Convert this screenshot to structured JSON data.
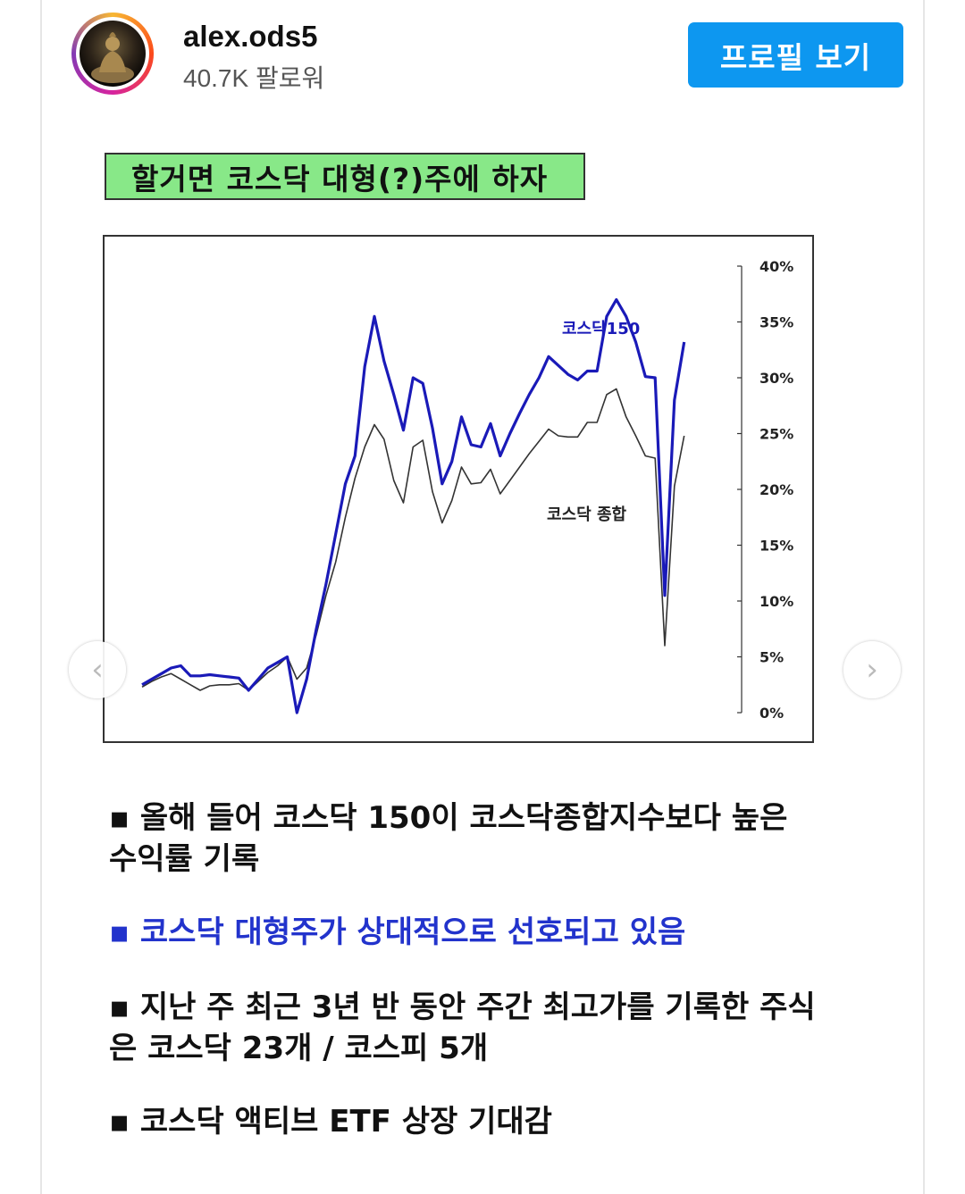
{
  "header": {
    "username": "alex.ods5",
    "followers": "40.7K 팔로워",
    "profile_button": "프로필 보기"
  },
  "post": {
    "banner_title": "할거면 코스닥 대형(?)주에 하자",
    "nav": {
      "prev_glyph": "‹",
      "next_glyph": "›"
    },
    "bullets": [
      {
        "text": "▪ 올해 들어 코스닥 150이 코스닥종합지수보다 높은 수익률 기록"
      },
      {
        "text": "▪ 코스닥 대형주가 상대적으로 선호되고 있음",
        "color": "#2233cc"
      },
      {
        "text": "▪ 지난 주 최근 3년 반 동안 주간 최고가를 기록한 주식은 코스닥 23개 / 코스피 5개"
      },
      {
        "text": "▪ 코스닥 액티브 ETF 상장 기대감"
      }
    ]
  },
  "chart_data": {
    "type": "line",
    "ylim": [
      0,
      40
    ],
    "y_ticks": [
      "40%",
      "35%",
      "30%",
      "25%",
      "20%",
      "15%",
      "10%",
      "5%",
      "0%"
    ],
    "x": [
      0,
      1,
      2,
      3,
      4,
      5,
      6,
      7,
      8,
      9,
      10,
      11,
      12,
      13,
      14,
      15,
      16,
      17,
      18,
      19,
      20,
      21,
      22,
      23,
      24,
      25,
      26,
      27,
      28,
      29,
      30,
      31,
      32,
      33,
      34,
      35,
      36,
      37,
      38,
      39,
      40,
      41,
      42,
      43,
      44,
      45,
      46,
      47,
      48,
      49,
      50,
      51,
      52,
      53,
      54,
      55,
      56,
      57,
      58,
      59,
      60
    ],
    "series": [
      {
        "name": "코스닥150",
        "color": "#1a1ab8",
        "values": [
          2.5,
          3.0,
          3.5,
          4.0,
          4.2,
          3.3,
          3.3,
          3.4,
          3.3,
          3.2,
          3.1,
          2.0,
          3.0,
          4.0,
          4.5,
          5.0,
          0.0,
          3.0,
          7.5,
          11.5,
          16.0,
          20.5,
          23.0,
          31.0,
          35.5,
          31.5,
          28.5,
          25.3,
          30.0,
          29.5,
          25.5,
          20.5,
          22.5,
          26.5,
          24.0,
          23.8,
          25.9,
          23.0,
          25.0,
          26.8,
          28.5,
          30.0,
          31.9,
          31.1,
          30.3,
          29.8,
          30.6,
          30.6,
          35.5,
          37.0,
          35.5,
          33.2,
          30.1,
          30.0,
          10.5,
          28.0,
          33.2,
          null,
          null,
          null,
          null
        ]
      },
      {
        "name": "코스닥 종합",
        "color": "#333333",
        "values": [
          2.3,
          2.8,
          3.2,
          3.5,
          3.0,
          2.5,
          2.0,
          2.4,
          2.5,
          2.5,
          2.6,
          2.0,
          2.8,
          3.6,
          4.2,
          5.0,
          3.0,
          4.0,
          7.0,
          10.5,
          13.5,
          17.5,
          21.0,
          23.8,
          25.8,
          24.5,
          20.8,
          18.8,
          23.8,
          24.4,
          19.8,
          17.0,
          19.0,
          22.0,
          20.5,
          20.6,
          21.8,
          19.6,
          20.8,
          22.0,
          23.2,
          24.3,
          25.4,
          24.8,
          24.7,
          24.7,
          26.0,
          26.0,
          28.5,
          29.0,
          26.5,
          24.8,
          23.0,
          22.8,
          6.0,
          20.3,
          24.8,
          null,
          null,
          null,
          null
        ]
      }
    ],
    "labels": [
      {
        "text": "코스닥150",
        "color": "#1a1ab8"
      },
      {
        "text": "코스닥 종합",
        "color": "#222222"
      }
    ],
    "grid": false
  }
}
